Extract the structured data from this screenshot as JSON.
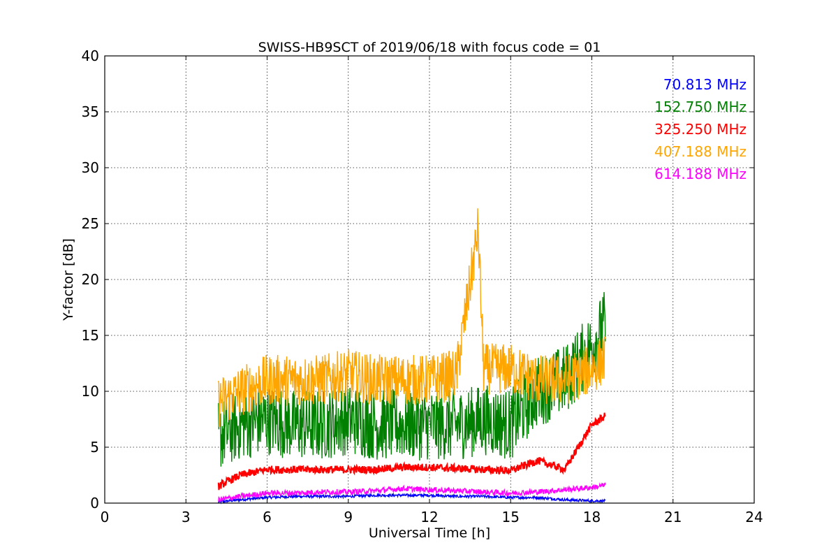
{
  "chart_data": {
    "type": "line",
    "title": "SWISS-HB9SCT of 2019/06/18 with focus code = 01",
    "xlabel": "Universal Time [h]",
    "ylabel": "Y-factor [dB]",
    "xlim": [
      0,
      24
    ],
    "ylim": [
      0,
      40
    ],
    "x_ticks": [
      "0",
      "3",
      "6",
      "9",
      "12",
      "15",
      "18",
      "21",
      "24"
    ],
    "y_ticks": [
      "0",
      "5",
      "10",
      "15",
      "20",
      "25",
      "30",
      "35",
      "40"
    ],
    "grid": true,
    "legend_position": "top-right",
    "series": [
      {
        "name": "70.813 MHz",
        "color": "#0000ff",
        "x": [
          4.2,
          5,
          6,
          7,
          8,
          9,
          10,
          11,
          12,
          13,
          14,
          15,
          16,
          17,
          18,
          18.5
        ],
        "y": [
          0.1,
          0.3,
          0.5,
          0.6,
          0.6,
          0.6,
          0.7,
          0.7,
          0.7,
          0.6,
          0.6,
          0.5,
          0.5,
          0.3,
          0.2,
          0.2
        ]
      },
      {
        "name": "152.750 MHz",
        "color": "#008000",
        "x": [
          4.2,
          5,
          6,
          7,
          8,
          9,
          10,
          11,
          12,
          13,
          14,
          15,
          16,
          17,
          18,
          18.5
        ],
        "y": [
          6,
          7,
          7.5,
          7,
          7,
          7.5,
          7,
          7,
          7,
          7,
          7.5,
          7,
          10,
          11,
          14,
          16
        ]
      },
      {
        "name": "325.250 MHz",
        "color": "#ff0000",
        "x": [
          4.2,
          5,
          6,
          7,
          8,
          9,
          10,
          11,
          12,
          13,
          14,
          15,
          16,
          17,
          18,
          18.5
        ],
        "y": [
          1.5,
          2.5,
          3.0,
          3.0,
          3.0,
          3.0,
          3.0,
          3.2,
          3.2,
          3.1,
          3.0,
          2.9,
          3.8,
          3.0,
          7.0,
          7.8
        ]
      },
      {
        "name": "407.188 MHz",
        "color": "#ffa500",
        "x": [
          4.2,
          5,
          6,
          7,
          8,
          9,
          10,
          11,
          12,
          13,
          13.8,
          14,
          15,
          16,
          17,
          18,
          18.5
        ],
        "y": [
          9,
          10,
          11,
          11,
          11,
          11.5,
          11,
          11,
          11,
          11.5,
          24.5,
          12,
          12,
          11,
          11,
          12,
          13
        ]
      },
      {
        "name": "614.188 MHz",
        "color": "#ff00ff",
        "x": [
          4.2,
          5,
          6,
          7,
          8,
          9,
          10,
          11,
          12,
          13,
          14,
          15,
          16,
          17,
          18,
          18.5
        ],
        "y": [
          0.3,
          0.6,
          0.9,
          0.9,
          1.0,
          1.0,
          1.1,
          1.3,
          1.2,
          1.1,
          1.0,
          0.9,
          1.0,
          1.2,
          1.4,
          1.6
        ]
      }
    ]
  }
}
